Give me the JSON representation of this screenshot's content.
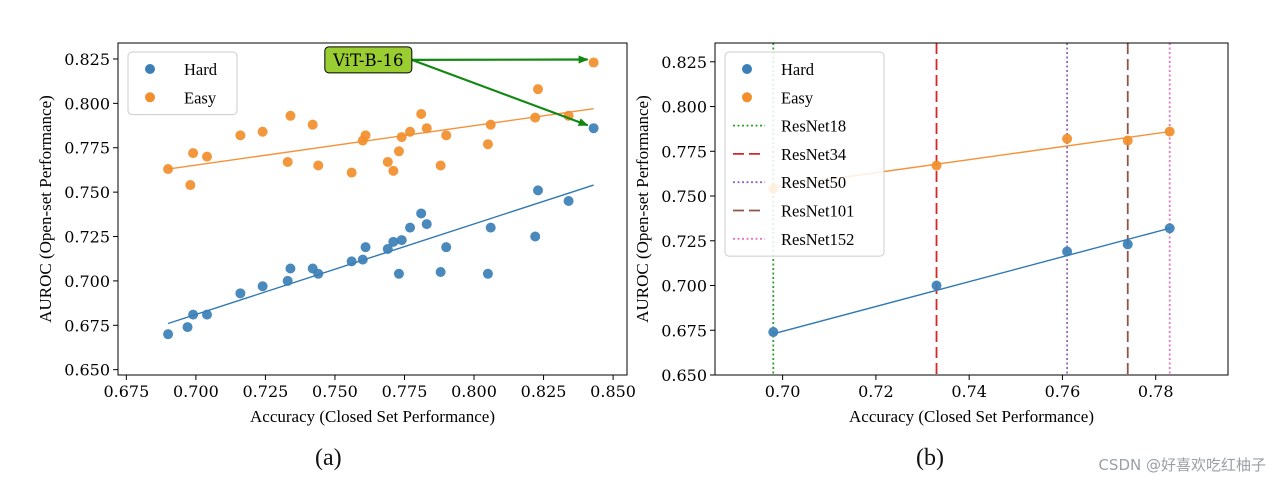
{
  "colors": {
    "hard": "#3b7fb6",
    "easy": "#f28e2b",
    "fit_hard": "#2f78b4",
    "fit_easy": "#f5923a",
    "annotation_bg": "#9acd32",
    "annotation_arrow": "#118811"
  },
  "watermark": "CSDN @好喜欢吃红柚子",
  "chart_data": [
    {
      "id": "a",
      "type": "scatter",
      "caption": "(a)",
      "xlabel": "Accuracy (Closed Set Performance)",
      "ylabel": "AUROC (Open-set Performance)",
      "xlim": [
        0.672,
        0.855
      ],
      "ylim": [
        0.647,
        0.834
      ],
      "xticks": [
        0.675,
        0.7,
        0.725,
        0.75,
        0.775,
        0.8,
        0.825,
        0.85
      ],
      "xtick_labels": [
        "0.675",
        "0.700",
        "0.725",
        "0.750",
        "0.775",
        "0.800",
        "0.825",
        "0.850"
      ],
      "yticks": [
        0.65,
        0.675,
        0.7,
        0.725,
        0.75,
        0.775,
        0.8,
        0.825
      ],
      "ytick_labels": [
        "0.650",
        "0.675",
        "0.700",
        "0.725",
        "0.750",
        "0.775",
        "0.800",
        "0.825"
      ],
      "legend": [
        {
          "label": "Hard",
          "style": "marker",
          "color_key": "hard"
        },
        {
          "label": "Easy",
          "style": "marker",
          "color_key": "easy"
        }
      ],
      "series": [
        {
          "name": "Hard",
          "color_key": "hard",
          "x": [
            0.69,
            0.697,
            0.699,
            0.704,
            0.716,
            0.724,
            0.733,
            0.734,
            0.742,
            0.744,
            0.756,
            0.76,
            0.761,
            0.769,
            0.771,
            0.773,
            0.774,
            0.777,
            0.781,
            0.783,
            0.788,
            0.79,
            0.805,
            0.806,
            0.822,
            0.823,
            0.834,
            0.843
          ],
          "y": [
            0.67,
            0.674,
            0.681,
            0.681,
            0.693,
            0.697,
            0.7,
            0.707,
            0.707,
            0.704,
            0.711,
            0.712,
            0.719,
            0.718,
            0.722,
            0.704,
            0.723,
            0.73,
            0.738,
            0.732,
            0.705,
            0.719,
            0.704,
            0.73,
            0.725,
            0.751,
            0.745,
            0.786
          ]
        },
        {
          "name": "Easy",
          "color_key": "easy",
          "x": [
            0.69,
            0.698,
            0.699,
            0.704,
            0.716,
            0.724,
            0.733,
            0.734,
            0.742,
            0.744,
            0.756,
            0.76,
            0.761,
            0.769,
            0.771,
            0.773,
            0.774,
            0.777,
            0.781,
            0.783,
            0.788,
            0.79,
            0.805,
            0.806,
            0.822,
            0.823,
            0.834,
            0.843
          ],
          "y": [
            0.763,
            0.754,
            0.772,
            0.77,
            0.782,
            0.784,
            0.767,
            0.793,
            0.788,
            0.765,
            0.761,
            0.779,
            0.782,
            0.767,
            0.762,
            0.773,
            0.781,
            0.784,
            0.794,
            0.786,
            0.765,
            0.782,
            0.777,
            0.788,
            0.792,
            0.808,
            0.793,
            0.823
          ]
        }
      ],
      "fit_lines": [
        {
          "name": "Hard",
          "color_key": "fit_hard",
          "x": [
            0.69,
            0.843
          ],
          "y": [
            0.676,
            0.754
          ]
        },
        {
          "name": "Easy",
          "color_key": "fit_easy",
          "x": [
            0.69,
            0.843
          ],
          "y": [
            0.763,
            0.797
          ]
        }
      ],
      "annotation": {
        "text": "ViT-B-16",
        "label_at": [
          0.762,
          0.8245
        ],
        "targets": [
          [
            0.843,
            0.823
          ],
          [
            0.843,
            0.786
          ]
        ]
      }
    },
    {
      "id": "b",
      "type": "scatter",
      "caption": "(b)",
      "xlabel": "Accuracy (Closed Set Performance)",
      "ylabel": "AUROC (Open-set Performance)",
      "xlim": [
        0.6855,
        0.7955
      ],
      "ylim": [
        0.65,
        0.8355
      ],
      "xticks": [
        0.7,
        0.72,
        0.74,
        0.76,
        0.78
      ],
      "xtick_labels": [
        "0.70",
        "0.72",
        "0.74",
        "0.76",
        "0.78"
      ],
      "yticks": [
        0.65,
        0.675,
        0.7,
        0.725,
        0.75,
        0.775,
        0.8,
        0.825
      ],
      "ytick_labels": [
        "0.650",
        "0.675",
        "0.700",
        "0.725",
        "0.750",
        "0.775",
        "0.800",
        "0.825"
      ],
      "legend": [
        {
          "label": "Hard",
          "style": "marker",
          "color_key": "hard"
        },
        {
          "label": "Easy",
          "style": "marker",
          "color_key": "easy"
        },
        {
          "label": "ResNet18",
          "style": "dotted",
          "color": "#2ca02c"
        },
        {
          "label": "ResNet34",
          "style": "dashed",
          "color": "#d62728"
        },
        {
          "label": "ResNet50",
          "style": "dotted",
          "color": "#9467bd"
        },
        {
          "label": "ResNet101",
          "style": "dashed",
          "color": "#8c564b"
        },
        {
          "label": "ResNet152",
          "style": "dotted",
          "color": "#e377c2"
        }
      ],
      "vlines": [
        {
          "name": "ResNet18",
          "x": 0.698,
          "color": "#2ca02c",
          "style": "dotted"
        },
        {
          "name": "ResNet34",
          "x": 0.733,
          "color": "#d62728",
          "style": "dashed"
        },
        {
          "name": "ResNet50",
          "x": 0.761,
          "color": "#9467bd",
          "style": "dotted"
        },
        {
          "name": "ResNet101",
          "x": 0.774,
          "color": "#8c564b",
          "style": "dashed"
        },
        {
          "name": "ResNet152",
          "x": 0.783,
          "color": "#e377c2",
          "style": "dotted"
        }
      ],
      "series": [
        {
          "name": "Hard",
          "color_key": "hard",
          "x": [
            0.698,
            0.733,
            0.761,
            0.774,
            0.783
          ],
          "y": [
            0.674,
            0.7,
            0.719,
            0.723,
            0.732
          ]
        },
        {
          "name": "Easy",
          "color_key": "easy",
          "x": [
            0.698,
            0.733,
            0.761,
            0.774,
            0.783
          ],
          "y": [
            0.754,
            0.767,
            0.782,
            0.781,
            0.786
          ]
        }
      ],
      "fit_lines": [
        {
          "name": "Hard",
          "color_key": "fit_hard",
          "x": [
            0.698,
            0.783
          ],
          "y": [
            0.673,
            0.732
          ]
        },
        {
          "name": "Easy",
          "color_key": "fit_easy",
          "x": [
            0.698,
            0.783
          ],
          "y": [
            0.755,
            0.786
          ]
        }
      ]
    }
  ]
}
